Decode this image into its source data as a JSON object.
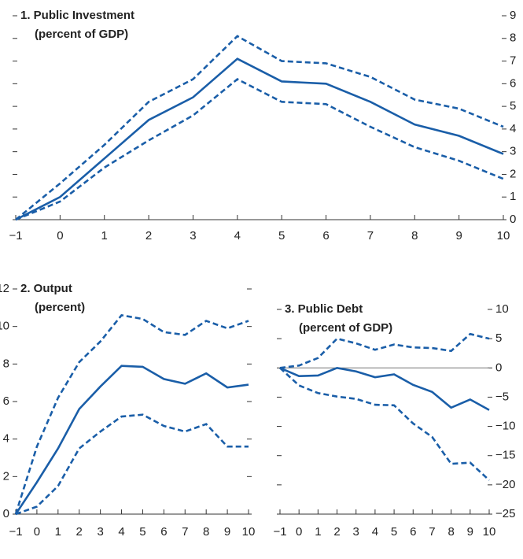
{
  "chart_data": [
    {
      "type": "line",
      "title": "1. Public Investment",
      "subtitle": "(percent of GDP)",
      "x": [
        -1,
        0,
        1,
        2,
        3,
        4,
        5,
        6,
        7,
        8,
        9,
        10
      ],
      "series": [
        {
          "color": "#1a5ea8",
          "dashed": true,
          "values": [
            0,
            1.6,
            3.3,
            5.2,
            6.2,
            8.1,
            7.0,
            6.9,
            6.3,
            5.3,
            4.9,
            4.1
          ]
        },
        {
          "color": "#1a5ea8",
          "dashed": false,
          "values": [
            0,
            1.0,
            2.7,
            4.4,
            5.4,
            7.1,
            6.1,
            6.0,
            5.2,
            4.2,
            3.7,
            2.9
          ]
        },
        {
          "color": "#1a5ea8",
          "dashed": true,
          "values": [
            0,
            0.8,
            2.3,
            3.5,
            4.6,
            6.2,
            5.2,
            5.1,
            4.1,
            3.2,
            2.6,
            1.8
          ]
        }
      ],
      "xlim": [
        -1,
        10
      ],
      "xticks": [
        {
          "value": -1,
          "label": "−1"
        },
        0,
        1,
        2,
        3,
        4,
        5,
        6,
        7,
        8,
        9,
        10
      ],
      "ylim": [
        0,
        9
      ],
      "yticks": [
        0,
        1,
        2,
        3,
        4,
        5,
        6,
        7,
        8,
        9
      ],
      "y_axis_side": "right",
      "zero_line": false
    },
    {
      "type": "line",
      "title": "2. Output",
      "subtitle": "(percent)",
      "x": [
        -1,
        0,
        1,
        2,
        3,
        4,
        5,
        6,
        7,
        8,
        9,
        10
      ],
      "series": [
        {
          "color": "#1a5ea8",
          "dashed": true,
          "values": [
            0,
            3.6,
            6.2,
            8.1,
            9.2,
            10.6,
            10.4,
            9.7,
            9.55,
            10.3,
            9.9,
            10.3
          ]
        },
        {
          "color": "#1a5ea8",
          "dashed": false,
          "values": [
            0,
            1.7,
            3.5,
            5.6,
            6.8,
            7.9,
            7.85,
            7.2,
            6.95,
            7.5,
            6.75,
            6.9
          ]
        },
        {
          "color": "#1a5ea8",
          "dashed": true,
          "values": [
            0,
            0.4,
            1.5,
            3.5,
            4.4,
            5.2,
            5.3,
            4.7,
            4.4,
            4.8,
            3.6,
            3.6
          ]
        }
      ],
      "xlim": [
        -1,
        10
      ],
      "xticks": [
        {
          "value": -1,
          "label": "−1"
        },
        0,
        1,
        2,
        3,
        4,
        5,
        6,
        7,
        8,
        9,
        10
      ],
      "ylim": [
        0,
        12
      ],
      "yticks": [
        0,
        2,
        4,
        6,
        8,
        10,
        12
      ],
      "y_axis_side": "left",
      "zero_line": false
    },
    {
      "type": "line",
      "title": "3. Public Debt",
      "subtitle": "(percent of GDP)",
      "x": [
        -1,
        0,
        1,
        2,
        3,
        4,
        5,
        6,
        7,
        8,
        9,
        10
      ],
      "series": [
        {
          "color": "#1a5ea8",
          "dashed": true,
          "values": [
            0,
            0.4,
            1.7,
            5.0,
            4.2,
            3.1,
            4.0,
            3.5,
            3.4,
            2.9,
            5.8,
            5.0
          ]
        },
        {
          "color": "#1a5ea8",
          "dashed": false,
          "values": [
            0,
            -1.4,
            -1.3,
            0,
            -0.6,
            -1.6,
            -1.1,
            -2.9,
            -4.1,
            -6.8,
            -5.4,
            -7.2
          ]
        },
        {
          "color": "#1a5ea8",
          "dashed": true,
          "values": [
            0,
            -3.0,
            -4.3,
            -4.9,
            -5.3,
            -6.3,
            -6.4,
            -9.5,
            -11.8,
            -16.4,
            -16.2,
            -19.2
          ]
        }
      ],
      "xlim": [
        -1,
        10
      ],
      "xticks": [
        {
          "value": -1,
          "label": "−1"
        },
        0,
        1,
        2,
        3,
        4,
        5,
        6,
        7,
        8,
        9,
        10
      ],
      "ylim": [
        -25,
        10
      ],
      "yticks": [
        {
          "value": -25,
          "label": "−25"
        },
        {
          "value": -20,
          "label": "−20"
        },
        {
          "value": -15,
          "label": "−15"
        },
        {
          "value": -10,
          "label": "−10"
        },
        {
          "value": -5,
          "label": "−5"
        },
        0,
        5,
        10
      ],
      "y_axis_side": "right",
      "zero_line": true
    }
  ]
}
